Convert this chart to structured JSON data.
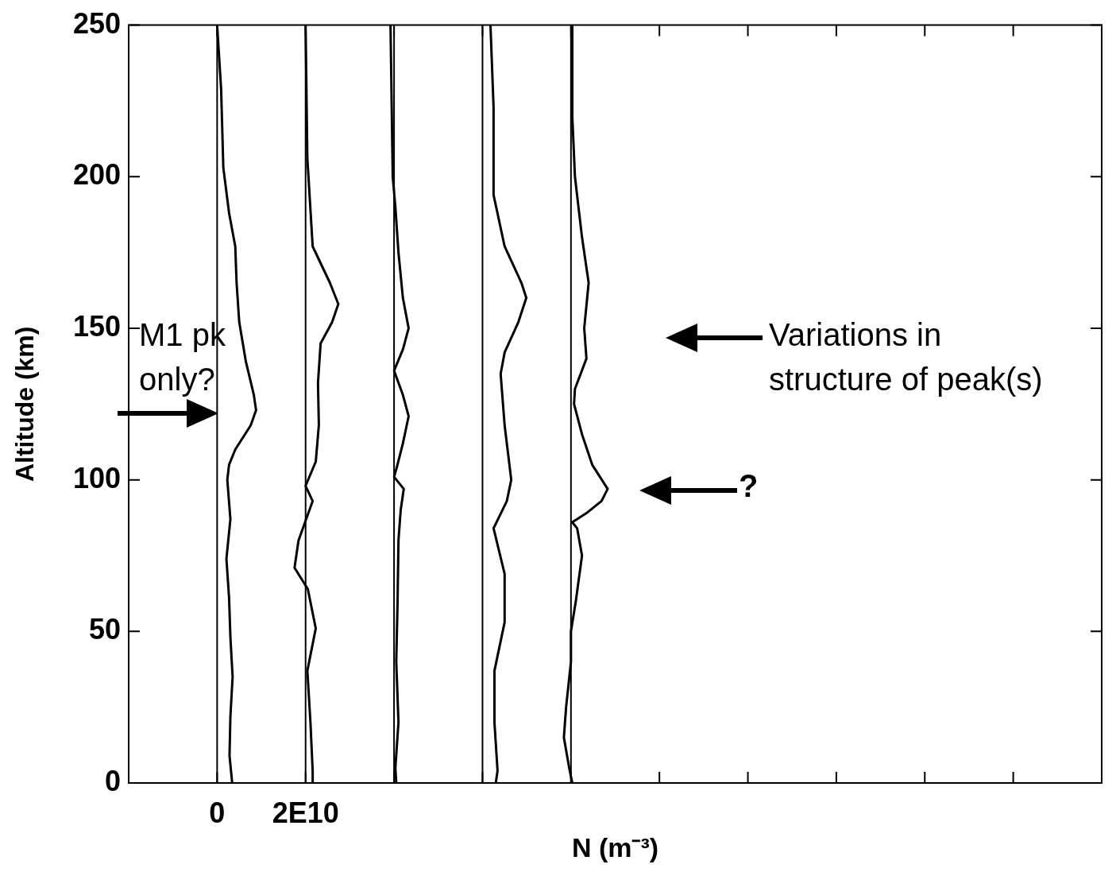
{
  "chart_data": {
    "type": "line",
    "xlabel": "N (m⁻³)",
    "ylabel": "Altitude (km)",
    "xlim": [
      -20000000000.0,
      200000000000.0
    ],
    "ylim": [
      0,
      250
    ],
    "xticks": [
      {
        "value": -20000000000.0,
        "label": null
      },
      0,
      {
        "value": 20000000000.0,
        "label": "2E10"
      },
      {
        "value": 40000000000.0,
        "label": null
      },
      {
        "value": 60000000000.0,
        "label": null
      },
      {
        "value": 80000000000.0,
        "label": null
      },
      {
        "value": 100000000000.0,
        "label": null
      },
      {
        "value": 120000000000.0,
        "label": null
      },
      {
        "value": 140000000000.0,
        "label": null
      },
      {
        "value": 160000000000.0,
        "label": null
      },
      {
        "value": 180000000000.0,
        "label": null
      },
      {
        "value": 200000000000.0,
        "label": null
      }
    ],
    "yticks": [
      0,
      50,
      100,
      150,
      200,
      250
    ],
    "grid": false,
    "legend": false,
    "marker": "none",
    "line_style": "solid",
    "series": [
      {
        "color": "#000000",
        "x": [
          0,
          900000000.0,
          1400000000.0,
          2700000000.0,
          4100000000.0,
          4400000000.0,
          5000000000.0,
          6500000000.0,
          8300000000.0,
          8800000000.0,
          7600000000.0,
          4100000000.0,
          2700000000.0,
          2300000000.0,
          3000000000.0,
          2100000000.0,
          2700000000.0,
          3000000000.0,
          3500000000.0,
          3000000000.0,
          2800000000.0,
          3400000000.0
        ],
        "values": [
          250,
          229,
          203,
          188,
          177,
          165,
          152,
          139,
          128,
          123,
          118,
          110,
          105,
          100,
          87,
          74,
          61,
          48,
          35,
          22,
          9,
          0
        ]
      },
      {
        "color": "#000000",
        "x": [
          20000000000.0,
          20400000000.0,
          21600000000.0,
          25500000000.0,
          27400000000.0,
          26000000000.0,
          23400000000.0,
          22800000000.0,
          23000000000.0,
          22300000000.0,
          20000000000.0,
          21600000000.0,
          18400000000.0,
          17500000000.0,
          20500000000.0,
          22300000000.0,
          20400000000.0,
          21100000000.0,
          21600000000.0,
          21600000000.0
        ],
        "values": [
          250,
          206,
          177,
          165,
          158,
          152,
          145,
          132,
          118,
          106,
          98,
          93,
          80,
          71,
          64,
          51,
          37,
          20,
          4,
          0
        ]
      },
      {
        "color": "#000000",
        "x": [
          39200000000.0,
          39700000000.0,
          40300000000.0,
          41000000000.0,
          42000000000.0,
          43300000000.0,
          42000000000.0,
          40000000000.0,
          42000000000.0,
          43300000000.0,
          42000000000.0,
          40600000000.0,
          40000000000.0,
          42200000000.0,
          41500000000.0,
          41000000000.0,
          40800000000.0,
          40500000000.0,
          41000000000.0,
          40300000000.0,
          40500000000.0
        ],
        "values": [
          250,
          200,
          190,
          175,
          160,
          150,
          143,
          136,
          128,
          121,
          112,
          104,
          101,
          97,
          90,
          80,
          60,
          40,
          20,
          5,
          0
        ]
      },
      {
        "color": "#000000",
        "x": [
          61800000000.0,
          62500000000.0,
          62500000000.0,
          65000000000.0,
          68800000000.0,
          69900000000.0,
          68100000000.0,
          65000000000.0,
          64100000000.0,
          65000000000.0,
          66500000000.0,
          65500000000.0,
          62500000000.0,
          65000000000.0,
          65000000000.0,
          62700000000.0,
          62700000000.0,
          63400000000.0,
          63000000000.0
        ],
        "values": [
          250,
          223,
          194,
          177,
          165,
          160,
          152,
          142,
          135,
          118,
          100,
          93,
          84,
          69,
          53,
          37,
          20,
          4,
          0
        ]
      },
      {
        "color": "#000000",
        "x": [
          80300000000.0,
          80300000000.0,
          80900000000.0,
          82500000000.0,
          84000000000.0,
          83000000000.0,
          83500000000.0,
          80900000000.0,
          80700000000.0,
          82500000000.0,
          84800000000.0,
          88300000000.0,
          86900000000.0,
          83500000000.0,
          80300000000.0,
          81400000000.0,
          82500000000.0,
          81100000000.0,
          80000000000.0,
          80000000000.0,
          78900000000.0,
          78400000000.0,
          79600000000.0,
          80300000000.0
        ],
        "values": [
          250,
          220,
          200,
          180,
          165,
          150,
          140,
          130,
          125,
          115,
          105,
          97,
          93,
          89,
          86,
          84,
          75,
          60,
          50,
          40,
          25,
          15,
          5,
          0
        ]
      }
    ],
    "ref_lines": [
      {
        "axis": "x",
        "value": 0,
        "color": "#000000"
      },
      {
        "axis": "x",
        "value": 20000000000.0,
        "color": "#000000"
      },
      {
        "axis": "x",
        "value": 40000000000.0,
        "color": "#000000"
      },
      {
        "axis": "x",
        "value": 60000000000.0,
        "color": "#000000"
      },
      {
        "axis": "x",
        "value": 80000000000.0,
        "color": "#000000"
      }
    ],
    "annotations": [
      "M1 pk\nonly?",
      "Variations in\nstructure of peak(s)",
      "?"
    ]
  }
}
